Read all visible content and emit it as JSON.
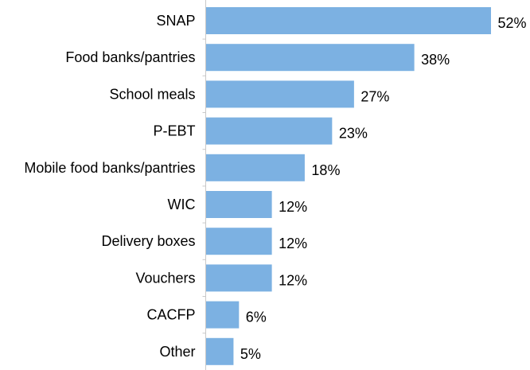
{
  "chart_data": {
    "type": "bar",
    "orientation": "horizontal",
    "title": "",
    "xlabel": "",
    "ylabel": "",
    "categories": [
      "SNAP",
      "Food banks/pantries",
      "School meals",
      "P-EBT",
      "Mobile food banks/pantries",
      "WIC",
      "Delivery boxes",
      "Vouchers",
      "CACFP",
      "Other"
    ],
    "values": [
      52,
      38,
      27,
      23,
      18,
      12,
      12,
      12,
      6,
      5
    ],
    "value_labels": [
      "52%",
      "38%",
      "27%",
      "23%",
      "18%",
      "12%",
      "12%",
      "12%",
      "6%",
      "5%"
    ],
    "xlim": [
      0,
      52
    ],
    "grid": false,
    "legend": "none",
    "bar_color": "#7cb1e2",
    "axis_color": "#c8c8c8"
  }
}
